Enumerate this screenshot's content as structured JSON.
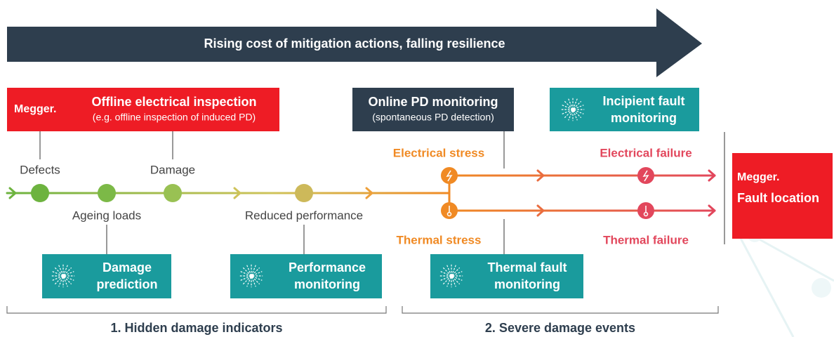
{
  "banner": "Rising cost of mitigation actions, falling resilience",
  "offline": {
    "brand": "Megger.",
    "title": "Offline electrical inspection",
    "subtitle": "(e.g. offline inspection of induced PD)"
  },
  "online": {
    "title": "Online PD monitoring",
    "subtitle": "(spontaneous PD detection)"
  },
  "incipient": {
    "lines": [
      "Incipient fault",
      "monitoring"
    ]
  },
  "stages": {
    "defects": "Defects",
    "damage": "Damage",
    "ageing": "Ageing loads",
    "reduced": "Reduced performance",
    "electrical_stress": "Electrical stress",
    "thermal_stress": "Thermal stress",
    "electrical_failure": "Electrical failure",
    "thermal_failure": "Thermal failure"
  },
  "monitors": [
    {
      "lines": [
        "Damage",
        "prediction"
      ]
    },
    {
      "lines": [
        "Performance",
        "monitoring"
      ]
    },
    {
      "lines": [
        "Thermal fault",
        "monitoring"
      ]
    }
  ],
  "fault_location": {
    "brand": "Megger.",
    "title": "Fault location"
  },
  "phases": [
    "1. Hidden damage indicators",
    "2. Severe damage events"
  ]
}
